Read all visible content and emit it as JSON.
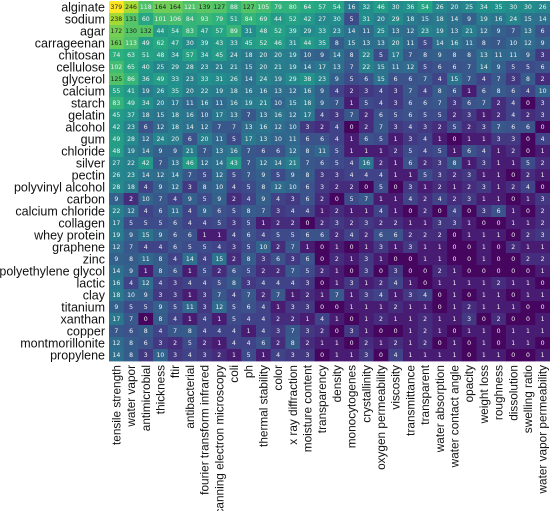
{
  "chart_data": {
    "type": "heatmap",
    "rows": [
      "alginate",
      "sodium",
      "agar",
      "carrageenan",
      "chitosan",
      "cellulose",
      "glycerol",
      "calcium",
      "starch",
      "gelatin",
      "alcohol",
      "gum",
      "chloride",
      "silver",
      "pectin",
      "polyvinyl alcohol",
      "carbon",
      "calcium chloride",
      "collagen",
      "whey protein",
      "graphene",
      "zinc",
      "polyethylene glycol",
      "lactic",
      "clay",
      "titanium",
      "xanthan",
      "copper",
      "montmorillonite",
      "propylene"
    ],
    "columns": [
      "tensile strength",
      "water vapor",
      "antimicrobial",
      "thickness",
      "ftir",
      "antibacterial",
      "fourier transform infrared",
      "scanning electron microscopy",
      "coli",
      "ph",
      "thermal stability",
      "color",
      "x ray diffraction",
      "moisture content",
      "transparency",
      "density",
      "monocytogenes",
      "crystallinity",
      "oxygen permeability",
      "viscosity",
      "transmittance",
      "transparent",
      "water absorption",
      "water contact angle",
      "opacity",
      "weight loss",
      "roughness",
      "dissolution",
      "swelling ratio",
      "water vapor permeability"
    ],
    "values": [
      [
        379,
        246,
        118,
        164,
        164,
        121,
        139,
        127,
        88,
        127,
        105,
        79,
        80,
        64,
        57,
        54,
        16,
        32,
        46,
        30,
        36,
        54,
        26,
        20,
        25,
        34,
        35,
        30,
        30,
        26
      ],
      [
        238,
        131,
        60,
        101,
        106,
        84,
        93,
        79,
        51,
        84,
        69,
        44,
        52,
        42,
        27,
        30,
        5,
        31,
        20,
        29,
        18,
        15,
        18,
        14,
        9,
        19,
        16,
        24,
        15,
        14
      ],
      [
        172,
        130,
        132,
        44,
        54,
        83,
        47,
        57,
        89,
        31,
        48,
        52,
        39,
        29,
        33,
        23,
        14,
        11,
        25,
        13,
        12,
        23,
        19,
        13,
        21,
        12,
        9,
        7,
        13,
        6
      ],
      [
        161,
        113,
        49,
        62,
        47,
        30,
        39,
        43,
        33,
        45,
        52,
        46,
        31,
        44,
        35,
        8,
        15,
        13,
        13,
        20,
        11,
        5,
        14,
        16,
        11,
        8,
        7,
        10,
        12,
        9
      ],
      [
        74,
        63,
        51,
        48,
        34,
        57,
        34,
        45,
        24,
        18,
        20,
        20,
        19,
        10,
        9,
        14,
        8,
        22,
        5,
        17,
        7,
        8,
        9,
        8,
        8,
        13,
        11,
        11,
        9,
        3
      ],
      [
        102,
        65,
        40,
        25,
        29,
        28,
        23,
        21,
        21,
        15,
        20,
        21,
        19,
        14,
        17,
        13,
        7,
        22,
        15,
        11,
        12,
        5,
        6,
        6,
        7,
        14,
        9,
        5,
        5,
        6
      ],
      [
        125,
        86,
        36,
        49,
        33,
        23,
        33,
        31,
        26,
        14,
        24,
        19,
        29,
        38,
        23,
        9,
        5,
        6,
        15,
        6,
        6,
        7,
        4,
        15,
        7,
        4,
        7,
        3,
        8,
        2
      ],
      [
        55,
        41,
        19,
        26,
        35,
        20,
        22,
        19,
        18,
        16,
        16,
        13,
        12,
        16,
        9,
        4,
        2,
        3,
        4,
        3,
        7,
        4,
        8,
        6,
        1,
        6,
        8,
        6,
        4,
        10
      ],
      [
        83,
        49,
        34,
        20,
        17,
        11,
        16,
        11,
        16,
        19,
        21,
        10,
        15,
        18,
        9,
        7,
        1,
        5,
        4,
        3,
        6,
        6,
        7,
        3,
        6,
        7,
        2,
        4,
        0,
        3
      ],
      [
        45,
        37,
        18,
        15,
        18,
        16,
        10,
        17,
        13,
        7,
        13,
        16,
        12,
        17,
        4,
        3,
        7,
        2,
        6,
        5,
        6,
        5,
        5,
        2,
        3,
        1,
        2,
        4,
        2,
        3
      ],
      [
        42,
        23,
        6,
        12,
        18,
        14,
        12,
        7,
        7,
        13,
        16,
        12,
        10,
        3,
        2,
        4,
        0,
        2,
        7,
        3,
        4,
        3,
        2,
        5,
        2,
        3,
        7,
        6,
        6,
        0
      ],
      [
        49,
        28,
        12,
        24,
        20,
        6,
        20,
        11,
        5,
        17,
        13,
        10,
        11,
        6,
        6,
        4,
        1,
        6,
        5,
        1,
        3,
        4,
        1,
        0,
        1,
        1,
        3,
        3,
        0,
        4
      ],
      [
        48,
        19,
        14,
        9,
        9,
        21,
        7,
        13,
        16,
        7,
        6,
        6,
        12,
        8,
        11,
        5,
        1,
        1,
        1,
        2,
        5,
        4,
        5,
        1,
        6,
        4,
        1,
        2,
        0,
        1
      ],
      [
        27,
        22,
        42,
        7,
        13,
        46,
        12,
        14,
        43,
        7,
        12,
        14,
        21,
        7,
        6,
        5,
        4,
        16,
        2,
        1,
        6,
        2,
        3,
        8,
        1,
        3,
        1,
        1,
        5,
        2
      ],
      [
        26,
        23,
        14,
        12,
        14,
        7,
        5,
        12,
        5,
        7,
        9,
        5,
        9,
        8,
        3,
        3,
        4,
        4,
        4,
        1,
        1,
        5,
        3,
        2,
        3,
        1,
        1,
        0,
        2,
        1
      ],
      [
        28,
        18,
        4,
        9,
        12,
        3,
        8,
        10,
        4,
        5,
        8,
        12,
        10,
        6,
        3,
        2,
        2,
        0,
        5,
        0,
        3,
        1,
        2,
        1,
        2,
        3,
        1,
        2,
        4,
        0
      ],
      [
        9,
        2,
        10,
        7,
        4,
        9,
        5,
        9,
        2,
        4,
        9,
        4,
        3,
        6,
        2,
        0,
        5,
        7,
        1,
        1,
        4,
        2,
        4,
        2,
        3,
        1,
        1,
        0,
        1,
        3
      ],
      [
        22,
        12,
        4,
        6,
        11,
        4,
        9,
        6,
        5,
        8,
        7,
        3,
        4,
        4,
        1,
        2,
        1,
        1,
        4,
        1,
        0,
        2,
        0,
        4,
        0,
        3,
        6,
        1,
        0,
        2
      ],
      [
        17,
        5,
        5,
        5,
        6,
        4,
        4,
        5,
        3,
        5,
        1,
        2,
        2,
        0,
        2,
        3,
        2,
        3,
        2,
        2,
        1,
        1,
        3,
        3,
        1,
        0,
        0,
        1,
        1,
        2
      ],
      [
        19,
        9,
        15,
        9,
        6,
        6,
        1,
        1,
        4,
        6,
        4,
        5,
        5,
        6,
        6,
        2,
        4,
        2,
        6,
        6,
        2,
        2,
        2,
        0,
        1,
        1,
        1,
        0,
        2,
        3
      ],
      [
        12,
        7,
        4,
        4,
        6,
        5,
        5,
        4,
        3,
        5,
        10,
        2,
        7,
        1,
        0,
        1,
        0,
        1,
        3,
        1,
        3,
        1,
        1,
        0,
        0,
        1,
        0,
        2,
        1,
        1
      ],
      [
        9,
        8,
        11,
        8,
        4,
        14,
        4,
        15,
        2,
        8,
        3,
        6,
        3,
        6,
        0,
        2,
        1,
        3,
        1,
        0,
        0,
        1,
        1,
        0,
        0,
        1,
        0,
        0,
        2,
        2
      ],
      [
        14,
        9,
        1,
        8,
        6,
        1,
        5,
        2,
        6,
        5,
        2,
        2,
        7,
        5,
        2,
        1,
        0,
        3,
        0,
        3,
        0,
        0,
        2,
        1,
        0,
        0,
        0,
        0,
        0,
        1
      ],
      [
        16,
        4,
        12,
        4,
        3,
        4,
        4,
        5,
        8,
        3,
        4,
        4,
        4,
        3,
        0,
        1,
        3,
        1,
        2,
        4,
        1,
        0,
        1,
        1,
        1,
        1,
        2,
        1,
        1,
        0
      ],
      [
        18,
        10,
        9,
        3,
        3,
        1,
        3,
        7,
        4,
        7,
        2,
        7,
        1,
        2,
        1,
        7,
        1,
        3,
        4,
        1,
        3,
        4,
        0,
        1,
        0,
        1,
        1,
        0,
        1,
        1
      ],
      [
        9,
        5,
        5,
        9,
        5,
        11,
        3,
        12,
        5,
        6,
        4,
        1,
        3,
        3,
        0,
        0,
        1,
        1,
        1,
        2,
        1,
        1,
        0,
        1,
        2,
        1,
        1,
        1,
        0,
        0
      ],
      [
        17,
        7,
        0,
        8,
        4,
        1,
        4,
        1,
        5,
        4,
        4,
        2,
        2,
        1,
        4,
        1,
        0,
        1,
        2,
        1,
        1,
        2,
        1,
        1,
        3,
        0,
        2,
        0,
        0,
        1
      ],
      [
        7,
        6,
        8,
        4,
        7,
        8,
        4,
        4,
        4,
        1,
        4,
        3,
        7,
        3,
        2,
        0,
        3,
        1,
        0,
        0,
        1,
        2,
        1,
        0,
        1,
        1,
        0,
        1,
        1,
        1
      ],
      [
        12,
        8,
        6,
        3,
        2,
        5,
        2,
        1,
        4,
        4,
        6,
        2,
        8,
        2,
        1,
        1,
        0,
        2,
        1,
        2,
        1,
        2,
        0,
        1,
        0,
        1,
        0,
        1,
        1,
        0
      ],
      [
        14,
        8,
        3,
        10,
        3,
        4,
        3,
        2,
        1,
        5,
        1,
        4,
        3,
        3,
        0,
        1,
        1,
        3,
        0,
        4,
        1,
        1,
        1,
        1,
        0,
        1,
        1,
        0,
        0,
        1
      ]
    ],
    "title": "",
    "xlabel": "",
    "ylabel": ""
  }
}
